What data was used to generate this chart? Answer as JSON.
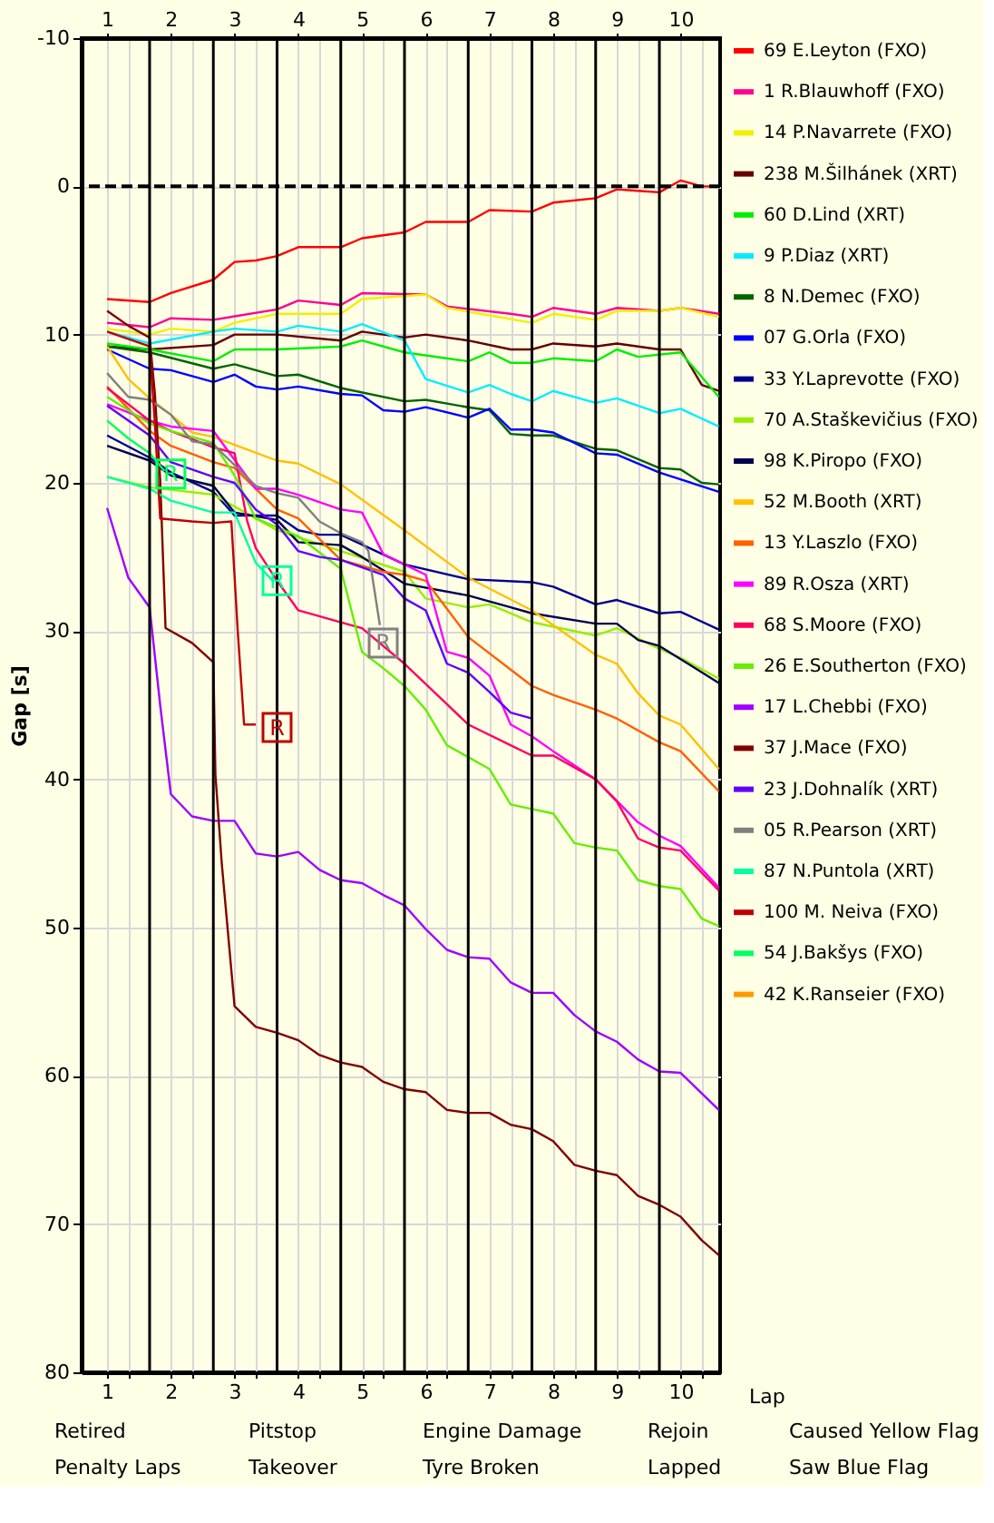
{
  "chart_data": {
    "type": "line",
    "xlabel": "Lap",
    "ylabel": "Gap [s]",
    "ylim": [
      80,
      -10
    ],
    "yticks": [
      -10,
      0,
      10,
      20,
      30,
      40,
      50,
      60,
      70,
      80
    ],
    "xlim": [
      0.6,
      10.62
    ],
    "xticks": [
      1,
      {
        "value": 1.333,
        "label": null
      },
      2,
      {
        "value": 2.333,
        "label": null
      },
      3,
      {
        "value": 3.333,
        "label": null
      },
      4,
      {
        "value": 4.333,
        "label": null
      },
      5,
      {
        "value": 5.333,
        "label": null
      },
      6,
      {
        "value": 6.333,
        "label": null
      },
      7,
      {
        "value": 7.333,
        "label": null
      },
      8,
      {
        "value": 8.333,
        "label": null
      },
      9,
      {
        "value": 9.333,
        "label": null
      },
      10,
      {
        "value": 10.333,
        "label": null
      }
    ],
    "x2lim": [
      0.6,
      10.62
    ],
    "x2ticks": [
      1,
      2,
      3,
      4,
      5,
      6,
      7,
      8,
      9,
      10
    ],
    "grid": true,
    "legend": "right",
    "line_style": "solid",
    "marker": "none",
    "ref_lines": [
      {
        "axis": "y",
        "value": 0,
        "color": "#000000",
        "line_style": "dashed"
      },
      {
        "axis": "x",
        "value": 1.667,
        "color": "#000000"
      },
      {
        "axis": "x",
        "value": 2.667,
        "color": "#000000"
      },
      {
        "axis": "x",
        "value": 3.667,
        "color": "#000000"
      },
      {
        "axis": "x",
        "value": 4.667,
        "color": "#000000"
      },
      {
        "axis": "x",
        "value": 5.667,
        "color": "#000000"
      },
      {
        "axis": "x",
        "value": 6.667,
        "color": "#000000"
      },
      {
        "axis": "x",
        "value": 7.667,
        "color": "#000000"
      },
      {
        "axis": "x",
        "value": 8.667,
        "color": "#000000"
      },
      {
        "axis": "x",
        "value": 9.667,
        "color": "#000000"
      }
    ],
    "annotations": [
      {
        "text": "R",
        "x": 2.0,
        "y": 19.4
      },
      {
        "text": "R",
        "x": 3.667,
        "y": 26.6
      },
      {
        "text": "R",
        "x": 5.333,
        "y": 30.8
      },
      {
        "text": "R",
        "x": 3.667,
        "y": 36.5
      },
      "Retired",
      "Pitstop",
      "Engine Damage",
      "Rejoin",
      "Caused Yellow Flag",
      "Penalty Laps",
      "Takeover",
      "Tyre Broken",
      "Lapped",
      "Saw Blue Flag"
    ],
    "series": [
      {
        "name": "69 E.Leyton (FXO)",
        "color": "#ff0000",
        "x": [
          1,
          1.667,
          2,
          2.667,
          3,
          3.333,
          3.667,
          4,
          4.667,
          5,
          5.667,
          6,
          6.667,
          7,
          7.667,
          8,
          8.667,
          9,
          9.333,
          9.667,
          10,
          10.333,
          10.6
        ],
        "values": [
          7.6,
          7.8,
          7.2,
          6.3,
          5.1,
          5.0,
          4.7,
          4.1,
          4.1,
          3.5,
          3.1,
          2.4,
          2.4,
          1.6,
          1.7,
          1.1,
          0.8,
          0.2,
          0.3,
          0.4,
          -0.4,
          0.0,
          0.0
        ]
      },
      {
        "name": "1 R.Blauwhoff (FXO)",
        "color": "#ff0090",
        "x": [
          1,
          1.667,
          2,
          2.667,
          3.667,
          4,
          4.667,
          5,
          6,
          6.333,
          7.333,
          7.667,
          8,
          8.667,
          9,
          9.667,
          10,
          10.6
        ],
        "values": [
          9.2,
          9.5,
          8.9,
          9.0,
          8.3,
          7.7,
          8.0,
          7.2,
          7.3,
          8.1,
          8.6,
          8.8,
          8.2,
          8.6,
          8.2,
          8.4,
          8.2,
          8.6
        ]
      },
      {
        "name": "14 P.Navarrete (FXO)",
        "color": "#f0f000",
        "x": [
          1,
          1.667,
          2,
          2.667,
          3,
          3.667,
          4.667,
          5,
          6,
          6.333,
          7.667,
          8,
          8.667,
          9,
          9.667,
          10,
          10.6
        ],
        "values": [
          9.6,
          10.0,
          9.6,
          9.8,
          9.2,
          8.6,
          8.6,
          7.6,
          7.3,
          8.2,
          9.2,
          8.6,
          9.0,
          8.4,
          8.4,
          8.2,
          8.8
        ]
      },
      {
        "name": "238 M.Šilhánek (XRT)",
        "color": "#660000",
        "x": [
          1,
          1.667,
          2.667,
          3,
          3.667,
          4.667,
          5,
          5.667,
          6,
          6.667,
          7.333,
          7.667,
          8,
          8.667,
          9,
          9.667,
          10,
          10.333,
          10.6
        ],
        "values": [
          10.8,
          11.0,
          10.7,
          10.0,
          10.0,
          10.4,
          9.8,
          10.2,
          10.0,
          10.4,
          11.0,
          11.0,
          10.6,
          10.8,
          10.6,
          11.0,
          11.0,
          13.4,
          13.8
        ]
      },
      {
        "name": "60 D.Lind (XRT)",
        "color": "#00ee00",
        "x": [
          1,
          1.667,
          2.667,
          3,
          3.667,
          4.667,
          5,
          5.667,
          6.667,
          7,
          7.333,
          7.667,
          8,
          8.667,
          9,
          9.333,
          10,
          10.6
        ],
        "values": [
          10.6,
          11.0,
          11.8,
          11.0,
          11.0,
          10.8,
          10.4,
          11.2,
          11.8,
          11.2,
          11.9,
          11.9,
          11.6,
          11.8,
          11.0,
          11.5,
          11.2,
          14.2
        ]
      },
      {
        "name": "9 P.Diaz (XRT)",
        "color": "#00eeff",
        "x": [
          1,
          1.667,
          2.667,
          3,
          3.667,
          4,
          4.667,
          5,
          5.667,
          6,
          6.667,
          7,
          7.333,
          7.667,
          8,
          8.667,
          9,
          9.667,
          10,
          10.6
        ],
        "values": [
          9.8,
          10.6,
          9.8,
          9.6,
          9.8,
          9.4,
          9.8,
          9.3,
          10.4,
          13.0,
          13.9,
          13.4,
          14.0,
          14.5,
          13.8,
          14.6,
          14.3,
          15.3,
          15.0,
          16.2
        ]
      },
      {
        "name": "8 N.Demec (FXO)",
        "color": "#006400",
        "x": [
          1,
          1.667,
          2.667,
          3,
          3.667,
          4,
          4.667,
          5.667,
          6,
          6.667,
          7,
          7.333,
          7.667,
          8,
          8.667,
          9,
          9.667,
          10,
          10.333,
          10.6
        ],
        "values": [
          10.8,
          11.2,
          12.3,
          12.0,
          12.8,
          12.7,
          13.6,
          14.5,
          14.4,
          14.9,
          15.1,
          16.7,
          16.8,
          16.8,
          17.7,
          17.8,
          19.0,
          19.1,
          20.0,
          20.1
        ]
      },
      {
        "name": "07 G.Orla (FXO)",
        "color": "#0000ff",
        "x": [
          1,
          1.667,
          2,
          2.667,
          3,
          3.333,
          3.667,
          4,
          4.667,
          5,
          5.333,
          5.667,
          6,
          6.667,
          7,
          7.333,
          7.667,
          8,
          8.667,
          9,
          9.667,
          10.6
        ],
        "values": [
          11.0,
          12.3,
          12.4,
          13.2,
          12.7,
          13.5,
          13.7,
          13.5,
          14.0,
          14.1,
          15.1,
          15.2,
          14.9,
          15.6,
          15.0,
          16.4,
          16.4,
          16.6,
          18.0,
          18.1,
          19.3,
          20.6
        ]
      },
      {
        "name": "33 Y.Laprevotte (FXO)",
        "color": "#000090",
        "x": [
          1,
          1.667,
          2,
          2.667,
          3,
          3.667,
          4,
          4.333,
          4.667,
          5.667,
          6.667,
          7.667,
          8,
          8.667,
          9,
          9.667,
          10,
          10.6
        ],
        "values": [
          16.8,
          18.3,
          19.3,
          20.6,
          22.2,
          22.2,
          23.2,
          23.5,
          23.5,
          25.5,
          26.5,
          26.7,
          27.0,
          28.2,
          27.9,
          28.8,
          28.7,
          29.9
        ]
      },
      {
        "name": "70 A.Staškevičius (FXO)",
        "color": "#99ee00",
        "x": [
          1,
          1.667,
          2.667,
          3,
          3.667,
          4.667,
          5.667,
          6,
          6.667,
          7,
          7.667,
          8.667,
          9,
          9.667,
          10,
          10.6
        ],
        "values": [
          19.6,
          20.3,
          20.8,
          21.6,
          23.2,
          24.6,
          26.0,
          27.8,
          28.4,
          28.2,
          29.4,
          30.3,
          29.8,
          31.2,
          31.8,
          33.2
        ]
      },
      {
        "name": "98 K.Piropo (FXO)",
        "color": "#000050",
        "x": [
          1,
          1.667,
          2,
          2.667,
          3,
          3.667,
          4,
          4.667,
          5,
          5.667,
          6.667,
          7.333,
          7.667,
          8.667,
          9,
          9.333,
          9.667,
          10.6
        ],
        "values": [
          17.5,
          18.5,
          19.5,
          20.2,
          22.0,
          22.5,
          24.0,
          24.2,
          25.0,
          26.8,
          27.6,
          28.4,
          28.8,
          29.5,
          29.5,
          30.6,
          31.0,
          33.5
        ]
      },
      {
        "name": "52 M.Booth (XRT)",
        "color": "#ffc000",
        "x": [
          1,
          1.333,
          1.667,
          2,
          2.333,
          2.667,
          3.667,
          4,
          4.667,
          5.667,
          6.667,
          7.667,
          8,
          8.667,
          9,
          9.333,
          9.667,
          10,
          10.6
        ],
        "values": [
          10.8,
          13.0,
          14.3,
          15.4,
          16.6,
          16.9,
          18.5,
          18.7,
          20.1,
          23.2,
          26.4,
          28.6,
          29.6,
          31.6,
          32.2,
          34.2,
          35.7,
          36.3,
          39.3
        ]
      },
      {
        "name": "13 Y.Laszlo (FXO)",
        "color": "#ff6000",
        "x": [
          1,
          1.667,
          2,
          2.667,
          3,
          3.667,
          4,
          4.667,
          5.333,
          5.667,
          6,
          6.667,
          7.333,
          7.667,
          8,
          8.667,
          9,
          9.667,
          10,
          10.6
        ],
        "values": [
          13.5,
          16.5,
          17.5,
          18.6,
          19.0,
          21.8,
          22.4,
          25.2,
          26.0,
          26.2,
          26.6,
          30.4,
          32.6,
          33.7,
          34.3,
          35.3,
          35.9,
          37.5,
          38.1,
          40.8
        ]
      },
      {
        "name": "89 R.Osza (XRT)",
        "color": "#ff00ff",
        "x": [
          1,
          1.667,
          2,
          2.667,
          3.333,
          3.667,
          4,
          4.667,
          5,
          5.333,
          5.667,
          6,
          6.333,
          6.667,
          7,
          7.333,
          7.667,
          8,
          8.667,
          9.333,
          9.667,
          10,
          10.6
        ],
        "values": [
          14.7,
          15.8,
          16.2,
          16.5,
          20.4,
          20.4,
          20.8,
          21.8,
          22.0,
          24.8,
          25.5,
          26.2,
          31.4,
          31.8,
          33.0,
          36.3,
          37.1,
          38.1,
          40.0,
          42.9,
          43.8,
          44.5,
          47.3
        ]
      },
      {
        "name": "68 S.Moore (FXO)",
        "color": "#ff0060",
        "x": [
          1,
          1.667,
          2,
          2.667,
          3,
          3.2,
          3.333,
          3.667,
          4,
          4.667,
          5,
          5.667,
          6.667,
          7.333,
          7.667,
          8,
          8.667,
          9,
          9.333,
          9.667,
          10,
          10.6
        ],
        "values": [
          13.6,
          15.8,
          16.5,
          17.6,
          18.0,
          22.6,
          24.4,
          26.6,
          28.6,
          29.4,
          29.8,
          32.2,
          36.3,
          37.7,
          38.4,
          38.4,
          40.0,
          41.5,
          44.0,
          44.6,
          44.8,
          47.5
        ]
      },
      {
        "name": "26 E.Southerton (FXO)",
        "color": "#66ee00",
        "x": [
          1,
          1.667,
          2,
          2.667,
          3,
          3.333,
          4,
          4.667,
          5,
          5.333,
          5.667,
          6,
          6.333,
          6.667,
          7,
          7.333,
          7.667,
          8,
          8.333,
          8.667,
          9,
          9.333,
          9.667,
          10,
          10.333,
          10.6
        ],
        "values": [
          14.2,
          16.0,
          16.5,
          17.3,
          19.5,
          22.4,
          23.6,
          25.8,
          31.4,
          32.5,
          33.7,
          35.3,
          37.7,
          38.5,
          39.3,
          41.7,
          42.0,
          42.3,
          44.3,
          44.6,
          44.8,
          46.8,
          47.2,
          47.4,
          49.4,
          49.9
        ]
      },
      {
        "name": "17 L.Chebbi (FXO)",
        "color": "#a000ff",
        "x": [
          1,
          1.333,
          1.667,
          1.833,
          2,
          2.333,
          2.667,
          3,
          3.333,
          3.667,
          4,
          4.333,
          4.667,
          5,
          5.333,
          5.667,
          6,
          6.333,
          6.667,
          7,
          7.333,
          7.667,
          8,
          8.333,
          8.667,
          9,
          9.333,
          9.667,
          10,
          10.6
        ],
        "values": [
          21.7,
          26.4,
          28.4,
          35.0,
          41.0,
          42.5,
          42.8,
          42.8,
          45.0,
          45.2,
          44.9,
          46.1,
          46.8,
          47.0,
          47.8,
          48.5,
          50.1,
          51.5,
          52.0,
          52.1,
          53.7,
          54.4,
          54.4,
          55.9,
          57.0,
          57.7,
          58.9,
          59.7,
          59.8,
          62.3
        ]
      },
      {
        "name": "37 J.Mace (FXO)",
        "color": "#800000",
        "x": [
          1,
          1.333,
          1.667,
          1.75,
          1.833,
          1.917,
          2.333,
          2.667,
          2.7,
          2.8,
          3,
          3.333,
          3.667,
          4,
          4.333,
          4.667,
          5,
          5.333,
          5.667,
          6,
          6.333,
          6.667,
          7,
          7.333,
          7.667,
          8,
          8.333,
          8.667,
          9,
          9.333,
          9.667,
          10,
          10.333,
          10.6
        ],
        "values": [
          8.4,
          9.4,
          10.2,
          14.0,
          19.8,
          29.8,
          30.8,
          32.1,
          39.7,
          45.7,
          55.3,
          56.7,
          57.1,
          57.6,
          58.6,
          59.1,
          59.4,
          60.4,
          60.9,
          61.1,
          62.3,
          62.5,
          62.5,
          63.3,
          63.6,
          64.4,
          66.0,
          66.4,
          66.7,
          68.1,
          68.7,
          69.5,
          71.1,
          72.1
        ]
      },
      {
        "name": "23 J.Dohnalík (XRT)",
        "color": "#6000ff",
        "x": [
          1,
          1.667,
          2,
          2.667,
          3,
          3.333,
          3.667,
          4,
          4.333,
          4.667,
          5.333,
          5.667,
          6,
          6.333,
          6.667,
          7,
          7.333,
          7.667
        ],
        "values": [
          14.8,
          16.8,
          18.6,
          19.6,
          20.0,
          21.8,
          22.8,
          24.6,
          25.0,
          25.2,
          26.2,
          27.8,
          28.6,
          32.2,
          32.8,
          34.1,
          35.5,
          35.9
        ]
      },
      {
        "name": "05 R.Pearson (XRT)",
        "color": "#808080",
        "x": [
          1,
          1.333,
          1.667,
          2,
          2.333,
          2.667,
          3,
          3.333,
          3.667,
          4,
          4.333,
          4.667,
          5,
          5.1,
          5.28
        ],
        "values": [
          12.6,
          14.2,
          14.4,
          15.4,
          17.2,
          17.4,
          18.8,
          20.2,
          20.7,
          21.0,
          22.6,
          23.4,
          24.0,
          24.6,
          29.6
        ]
      },
      {
        "name": "87 N.Puntola (XRT)",
        "color": "#00ffa0",
        "x": [
          1,
          1.667,
          2,
          2.667,
          3,
          3.333,
          3.6
        ],
        "values": [
          19.6,
          20.4,
          21.2,
          22.0,
          22.0,
          25.4,
          26.6
        ]
      },
      {
        "name": "100 M. Neiva (FXO)",
        "color": "#c00000",
        "x": [
          1,
          1.667,
          1.75,
          1.833,
          2.333,
          2.667,
          2.95,
          3.05,
          3.15,
          3.333
        ],
        "values": [
          9.8,
          10.8,
          16.0,
          22.4,
          22.6,
          22.7,
          22.6,
          30.0,
          36.3,
          36.3
        ]
      },
      {
        "name": "54 J.Bakšys (FXO)",
        "color": "#00ff60",
        "x": [
          1,
          1.333,
          1.667,
          1.9
        ],
        "values": [
          15.8,
          17.0,
          18.0,
          19.2
        ]
      },
      {
        "name": "42 K.Ranseier (FXO)",
        "color": "#ff9900"
      }
    ]
  }
}
